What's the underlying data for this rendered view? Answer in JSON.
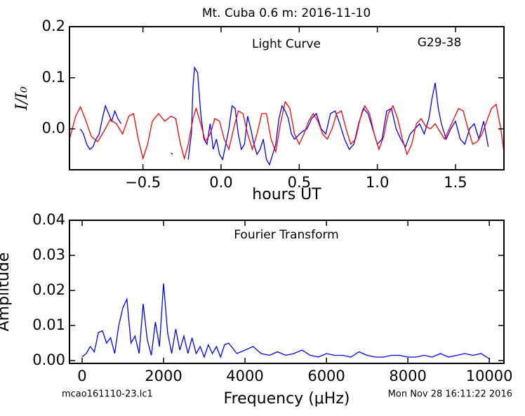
{
  "figure": {
    "title": "Mt. Cuba 0.6 m:  2016-11-10",
    "footer_left": "mcao161110-23.lc1",
    "footer_right": "Mon Nov 28 16:11:22 2016"
  },
  "chart_data": [
    {
      "type": "line",
      "xlabel": "hours UT",
      "ylabel": "I/I₀",
      "annotations": [
        "Light Curve",
        "G29-38"
      ],
      "xlim": [
        -0.97,
        1.81
      ],
      "ylim": [
        -0.08,
        0.2
      ],
      "xticks": [
        {
          "value": -0.5,
          "label": "−0.5"
        },
        {
          "value": 0,
          "label": "0.0"
        },
        0.5,
        {
          "value": 1,
          "label": "1.0"
        },
        1.5
      ],
      "yticks": [
        {
          "value": 0,
          "label": "0.0"
        },
        0.1,
        0.2
      ],
      "series": [
        {
          "color": "#0000ff",
          "x": [
            -0.9,
            -0.88,
            -0.86,
            -0.84,
            -0.82,
            -0.8,
            -0.78,
            -0.76,
            -0.74,
            -0.72,
            -0.7,
            -0.68,
            -0.66,
            -0.64,
            -0.5,
            -0.32,
            -0.31,
            -0.25,
            -0.21,
            -0.19,
            -0.18,
            -0.17,
            -0.15,
            -0.13,
            -0.11,
            -0.09,
            -0.07,
            -0.05,
            -0.03,
            -0.01,
            0.01,
            0.03,
            0.05,
            0.07,
            0.09,
            0.11,
            0.13,
            0.15,
            0.17,
            0.19,
            0.21,
            0.23,
            0.25,
            0.27,
            0.29,
            0.31,
            0.33,
            0.35,
            0.37,
            0.39,
            0.41,
            0.43,
            0.45,
            0.47,
            0.52,
            0.55,
            0.58,
            0.61,
            0.64,
            0.67,
            0.7,
            0.73,
            0.76,
            0.79,
            0.82,
            0.85,
            0.88,
            0.91,
            0.94,
            0.97,
            1.0,
            1.03,
            1.06,
            1.09,
            1.12,
            1.15,
            1.18,
            1.21,
            1.24,
            1.27,
            1.3,
            1.33,
            1.35,
            1.37,
            1.39,
            1.41,
            1.44,
            1.47,
            1.5,
            1.53,
            1.56,
            1.59,
            1.62,
            1.65,
            1.68,
            1.71
          ],
          "values": [
            0.0,
            -0.01,
            -0.03,
            -0.04,
            -0.035,
            -0.02,
            -0.01,
            0.02,
            0.045,
            0.03,
            0.015,
            0.035,
            0.02,
            0.01,
            null,
            -0.047,
            -0.05,
            null,
            -0.06,
            -0.01,
            0.08,
            0.12,
            0.11,
            0.03,
            -0.02,
            -0.03,
            0.01,
            -0.04,
            -0.02,
            -0.05,
            -0.06,
            -0.03,
            0.0,
            0.045,
            0.04,
            -0.01,
            -0.04,
            -0.03,
            0.025,
            0.0,
            -0.03,
            -0.05,
            -0.04,
            -0.02,
            -0.06,
            -0.07,
            -0.05,
            -0.03,
            0.02,
            0.045,
            0.035,
            0.02,
            -0.01,
            -0.02,
            -0.005,
            0.0,
            0.02,
            0.03,
            0.0,
            -0.01,
            0.03,
            0.035,
            0.01,
            -0.02,
            -0.04,
            -0.03,
            0.01,
            0.04,
            0.03,
            0.0,
            -0.03,
            -0.02,
            0.035,
            0.04,
            0.0,
            -0.02,
            -0.035,
            -0.01,
            0.0,
            0.01,
            -0.01,
            0.02,
            0.06,
            0.09,
            0.04,
            0.01,
            -0.02,
            0.0,
            0.015,
            -0.02,
            -0.03,
            0.0,
            0.01,
            -0.02,
            0.015,
            -0.035
          ]
        },
        {
          "color": "#ff0000",
          "x": [
            -0.97,
            -0.93,
            -0.9,
            -0.87,
            -0.83,
            -0.79,
            -0.75,
            -0.71,
            -0.67,
            -0.63,
            -0.59,
            -0.56,
            -0.53,
            -0.5,
            -0.47,
            -0.44,
            -0.4,
            -0.36,
            -0.32,
            -0.29,
            -0.26,
            -0.235,
            -0.21,
            -0.18,
            -0.16,
            -0.13,
            -0.1,
            -0.07,
            -0.04,
            -0.01,
            0.02,
            0.05,
            0.08,
            0.11,
            0.14,
            0.17,
            0.2,
            0.23,
            0.26,
            0.29,
            0.32,
            0.35,
            0.38,
            0.41,
            0.44,
            0.47,
            0.5,
            0.53,
            0.56,
            0.59,
            0.62,
            0.65,
            0.68,
            0.71,
            0.74,
            0.77,
            0.8,
            0.83,
            0.86,
            0.89,
            0.92,
            0.95,
            0.98,
            1.01,
            1.04,
            1.07,
            1.1,
            1.13,
            1.16,
            1.19,
            1.22,
            1.25,
            1.28,
            1.31,
            1.34,
            1.37,
            1.4,
            1.43,
            1.46,
            1.49,
            1.52,
            1.55,
            1.58,
            1.61,
            1.64,
            1.67,
            1.7,
            1.73,
            1.76,
            1.79,
            1.81
          ],
          "values": [
            -0.02,
            0.025,
            0.043,
            0.02,
            -0.015,
            -0.025,
            -0.005,
            0.018,
            0.01,
            -0.01,
            0.025,
            0.03,
            -0.02,
            -0.058,
            -0.03,
            0.015,
            0.03,
            0.015,
            0.025,
            0.02,
            -0.03,
            -0.058,
            -0.03,
            0.02,
            0.04,
            0.01,
            -0.025,
            -0.01,
            0.02,
            0.015,
            -0.02,
            -0.04,
            0.0,
            0.035,
            0.03,
            -0.01,
            -0.04,
            -0.01,
            0.03,
            0.03,
            -0.02,
            -0.045,
            0.01,
            0.053,
            0.04,
            -0.01,
            -0.03,
            -0.01,
            0.015,
            0.03,
            0.015,
            -0.01,
            -0.02,
            0.0,
            0.03,
            0.035,
            0.0,
            -0.03,
            -0.02,
            0.02,
            0.045,
            0.03,
            -0.01,
            -0.04,
            -0.015,
            0.03,
            0.045,
            0.02,
            -0.02,
            -0.05,
            -0.03,
            0.01,
            0.02,
            0.005,
            0.0,
            0.01,
            -0.005,
            -0.02,
            0.0,
            0.02,
            0.04,
            0.035,
            0.0,
            -0.03,
            -0.025,
            -0.01,
            0.015,
            0.04,
            0.048,
            0.0,
            -0.045
          ]
        }
      ]
    },
    {
      "type": "line",
      "xlabel": "Frequency (μHz)",
      "ylabel": "Amplitude",
      "annotations": [
        "Fourier Transform"
      ],
      "xlim": [
        -310,
        10360
      ],
      "ylim": [
        -0.0008,
        0.04
      ],
      "xticks": [
        0,
        2000,
        4000,
        6000,
        8000,
        10000
      ],
      "yticks": [
        {
          "value": 0,
          "label": "0.00"
        },
        0.01,
        0.02,
        0.03,
        0.04
      ],
      "series": [
        {
          "color": "#0000ff",
          "x": [
            0,
            100,
            200,
            300,
            400,
            500,
            600,
            700,
            800,
            900,
            1000,
            1100,
            1200,
            1300,
            1400,
            1500,
            1600,
            1700,
            1800,
            1900,
            2000,
            2100,
            2200,
            2300,
            2400,
            2500,
            2600,
            2700,
            2800,
            2900,
            3000,
            3100,
            3200,
            3300,
            3400,
            3500,
            3600,
            3800,
            4000,
            4200,
            4400,
            4600,
            4800,
            5000,
            5200,
            5400,
            5600,
            5800,
            6000,
            6200,
            6400,
            6600,
            6800,
            7000,
            7200,
            7400,
            7600,
            7800,
            8000,
            8200,
            8400,
            8600,
            8800,
            9000,
            9200,
            9400,
            9600,
            9800,
            10000
          ],
          "values": [
            0.001,
            0.002,
            0.004,
            0.0025,
            0.008,
            0.0085,
            0.005,
            0.0065,
            0.002,
            0.01,
            0.015,
            0.0175,
            0.005,
            0.007,
            0.002,
            0.0162,
            0.006,
            0.0015,
            0.011,
            0.004,
            0.022,
            0.008,
            0.002,
            0.009,
            0.003,
            0.007,
            0.002,
            0.0065,
            0.002,
            0.004,
            0.001,
            0.0045,
            0.002,
            0.004,
            0.001,
            0.0045,
            0.005,
            0.002,
            0.003,
            0.004,
            0.002,
            0.0015,
            0.0025,
            0.0015,
            0.002,
            0.003,
            0.0015,
            0.001,
            0.002,
            0.0015,
            0.0015,
            0.001,
            0.0025,
            0.0015,
            0.001,
            0.001,
            0.0015,
            0.0015,
            0.001,
            0.001,
            0.0015,
            0.001,
            0.002,
            0.001,
            0.0015,
            0.002,
            0.0015,
            0.002,
            0.0005
          ]
        }
      ]
    }
  ]
}
